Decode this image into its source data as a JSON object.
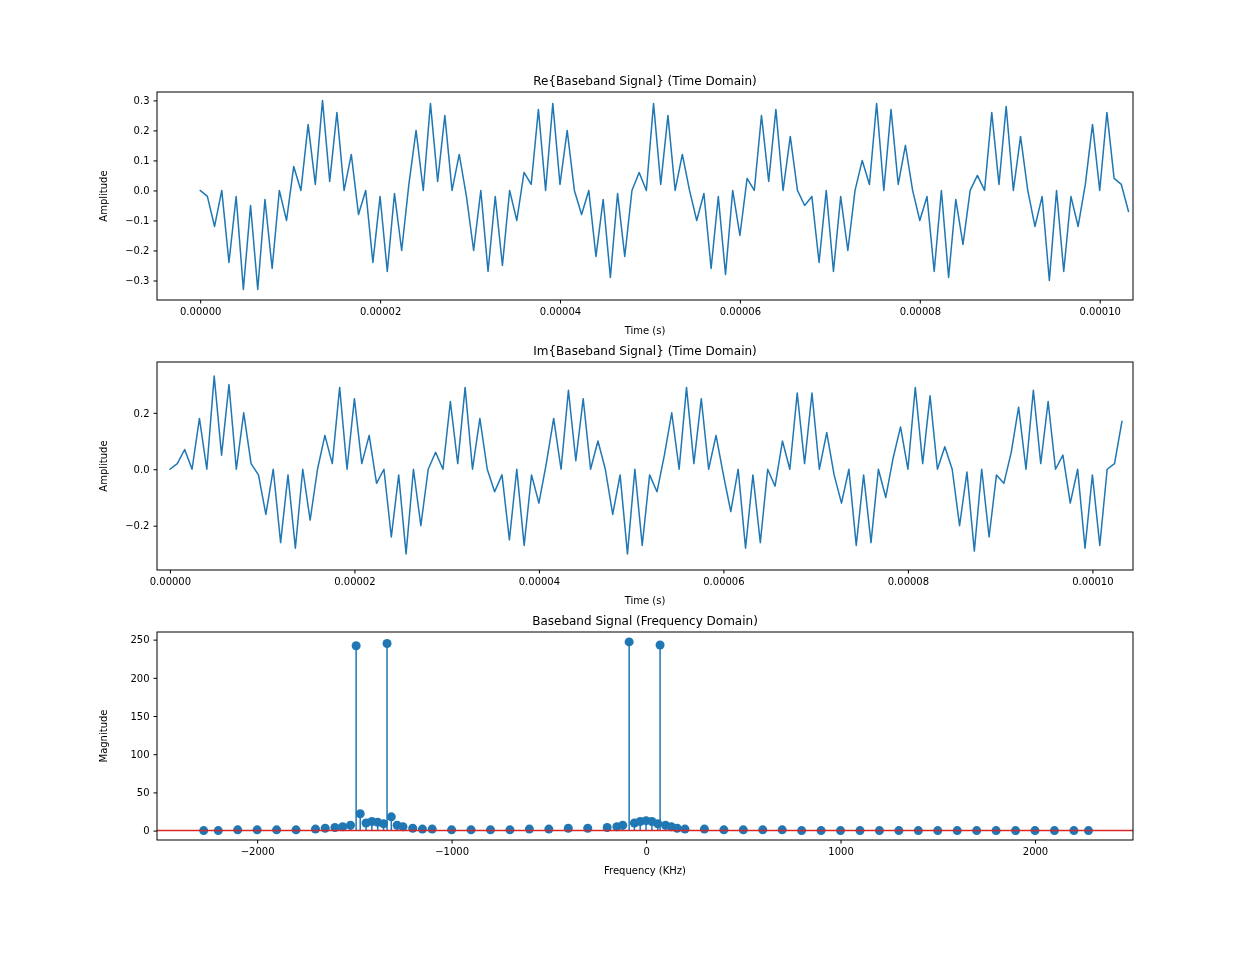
{
  "chart_data": [
    {
      "type": "line",
      "title": "Re{Baseband Signal} (Time Domain)",
      "xlabel": "Time (s)",
      "ylabel": "Amplitude",
      "x": [
        0.0,
        8e-07,
        1.6e-06,
        2.4e-06,
        3.2e-06,
        4e-06,
        4.8e-06,
        5.6e-06,
        6.4e-06,
        7.2e-06,
        8e-06,
        8.8e-06,
        9.6e-06,
        1.04e-05,
        1.12e-05,
        1.2e-05,
        1.28e-05,
        1.36e-05,
        1.44e-05,
        1.52e-05,
        1.6e-05,
        1.68e-05,
        1.76e-05,
        1.84e-05,
        1.92e-05,
        2e-05,
        2.08e-05,
        2.16e-05,
        2.24e-05,
        2.32e-05,
        2.4e-05,
        2.48e-05,
        2.56e-05,
        2.64e-05,
        2.72e-05,
        2.8e-05,
        2.88e-05,
        2.96e-05,
        3.04e-05,
        3.12e-05,
        3.2e-05,
        3.28e-05,
        3.36e-05,
        3.44e-05,
        3.52e-05,
        3.6e-05,
        3.68e-05,
        3.76e-05,
        3.84e-05,
        3.92e-05,
        4e-05,
        4.08e-05,
        4.16e-05,
        4.24e-05,
        4.32e-05,
        4.4e-05,
        4.48e-05,
        4.56e-05,
        4.64e-05,
        4.72e-05,
        4.8e-05,
        4.88e-05,
        4.96e-05,
        5.04e-05,
        5.12e-05,
        5.2e-05,
        5.28e-05,
        5.36e-05,
        5.44e-05,
        5.52e-05,
        5.6e-05,
        5.68e-05,
        5.76e-05,
        5.84e-05,
        5.92e-05,
        6e-05,
        6.08e-05,
        6.16e-05,
        6.24e-05,
        6.32e-05,
        6.4e-05,
        6.48e-05,
        6.56e-05,
        6.64e-05,
        6.72e-05,
        6.8e-05,
        6.88e-05,
        6.96e-05,
        7.04e-05,
        7.12e-05,
        7.2e-05,
        7.28e-05,
        7.36e-05,
        7.44e-05,
        7.52e-05,
        7.6e-05,
        7.68e-05,
        7.76e-05,
        7.84e-05,
        7.92e-05,
        8e-05,
        8.08e-05,
        8.16e-05,
        8.24e-05,
        8.32e-05,
        8.4e-05,
        8.48e-05,
        8.56e-05,
        8.64e-05,
        8.72e-05,
        8.8e-05,
        8.88e-05,
        8.96e-05,
        9.04e-05,
        9.12e-05,
        9.2e-05,
        9.28e-05,
        9.36e-05,
        9.44e-05,
        9.52e-05,
        9.6e-05,
        9.68e-05,
        9.76e-05,
        9.84e-05,
        9.92e-05,
        0.0001,
        0.0001008,
        0.0001016,
        0.0001024,
        0.0001032
      ],
      "series": [
        {
          "color": "#1f77b4",
          "values": [
            0.0,
            -0.02,
            -0.12,
            0.0,
            -0.24,
            -0.02,
            -0.33,
            -0.05,
            -0.33,
            -0.03,
            -0.26,
            0.0,
            -0.1,
            0.08,
            0.0,
            0.22,
            0.02,
            0.3,
            0.03,
            0.26,
            0.0,
            0.12,
            -0.08,
            0.0,
            -0.24,
            -0.02,
            -0.27,
            -0.01,
            -0.2,
            0.02,
            0.2,
            0.0,
            0.29,
            0.03,
            0.25,
            0.0,
            0.12,
            -0.02,
            -0.2,
            0.0,
            -0.27,
            -0.02,
            -0.25,
            0.0,
            -0.1,
            0.06,
            0.02,
            0.27,
            0.0,
            0.29,
            0.02,
            0.2,
            0.0,
            -0.08,
            0.0,
            -0.22,
            -0.03,
            -0.29,
            -0.01,
            -0.22,
            0.0,
            0.06,
            0.0,
            0.29,
            0.02,
            0.25,
            0.0,
            0.12,
            0.0,
            -0.1,
            -0.01,
            -0.26,
            -0.02,
            -0.28,
            0.0,
            -0.15,
            0.04,
            0.0,
            0.25,
            0.03,
            0.27,
            0.0,
            0.18,
            0.0,
            -0.05,
            -0.02,
            -0.24,
            0.0,
            -0.27,
            -0.02,
            -0.2,
            0.0,
            0.1,
            0.02,
            0.29,
            0.0,
            0.27,
            0.02,
            0.15,
            0.0,
            -0.1,
            -0.02,
            -0.27,
            0.0,
            -0.29,
            -0.03,
            -0.18,
            0.0,
            0.05,
            0.0,
            0.26,
            0.02,
            0.28,
            0.0,
            0.18,
            0.0,
            -0.12,
            -0.02,
            -0.3,
            0.0,
            -0.27,
            -0.02,
            -0.12,
            0.02,
            0.22,
            0.0,
            0.26,
            0.04,
            0.02,
            -0.07
          ]
        }
      ],
      "xlim": [
        -4.8e-06,
        0.0001037
      ],
      "ylim": [
        -0.365,
        0.328
      ],
      "xticks": [
        {
          "value": 0,
          "label": "0.00000"
        },
        {
          "value": 2e-05,
          "label": "0.00002"
        },
        {
          "value": 4e-05,
          "label": "0.00004"
        },
        {
          "value": 6e-05,
          "label": "0.00006"
        },
        {
          "value": 8e-05,
          "label": "0.00008"
        },
        {
          "value": 0.0001,
          "label": "0.00010"
        }
      ],
      "yticks": [
        {
          "value": -0.3,
          "label": "−0.3"
        },
        {
          "value": -0.2,
          "label": "−0.2"
        },
        {
          "value": -0.1,
          "label": "−0.1"
        },
        {
          "value": 0,
          "label": "0.0"
        },
        {
          "value": 0.1,
          "label": "0.1"
        },
        {
          "value": 0.2,
          "label": "0.2"
        },
        {
          "value": 0.3,
          "label": "0.3"
        }
      ]
    },
    {
      "type": "line",
      "title": "Im{Baseband Signal} (Time Domain)",
      "xlabel": "Time (s)",
      "ylabel": "Amplitude",
      "x": [
        0.0,
        8e-07,
        1.6e-06,
        2.4e-06,
        3.2e-06,
        4e-06,
        4.8e-06,
        5.6e-06,
        6.4e-06,
        7.2e-06,
        8e-06,
        8.8e-06,
        9.6e-06,
        1.04e-05,
        1.12e-05,
        1.2e-05,
        1.28e-05,
        1.36e-05,
        1.44e-05,
        1.52e-05,
        1.6e-05,
        1.68e-05,
        1.76e-05,
        1.84e-05,
        1.92e-05,
        2e-05,
        2.08e-05,
        2.16e-05,
        2.24e-05,
        2.32e-05,
        2.4e-05,
        2.48e-05,
        2.56e-05,
        2.64e-05,
        2.72e-05,
        2.8e-05,
        2.88e-05,
        2.96e-05,
        3.04e-05,
        3.12e-05,
        3.2e-05,
        3.28e-05,
        3.36e-05,
        3.44e-05,
        3.52e-05,
        3.6e-05,
        3.68e-05,
        3.76e-05,
        3.84e-05,
        3.92e-05,
        4e-05,
        4.08e-05,
        4.16e-05,
        4.24e-05,
        4.32e-05,
        4.4e-05,
        4.48e-05,
        4.56e-05,
        4.64e-05,
        4.72e-05,
        4.8e-05,
        4.88e-05,
        4.96e-05,
        5.04e-05,
        5.12e-05,
        5.2e-05,
        5.28e-05,
        5.36e-05,
        5.44e-05,
        5.52e-05,
        5.6e-05,
        5.68e-05,
        5.76e-05,
        5.84e-05,
        5.92e-05,
        6e-05,
        6.08e-05,
        6.16e-05,
        6.24e-05,
        6.32e-05,
        6.4e-05,
        6.48e-05,
        6.56e-05,
        6.64e-05,
        6.72e-05,
        6.8e-05,
        6.88e-05,
        6.96e-05,
        7.04e-05,
        7.12e-05,
        7.2e-05,
        7.28e-05,
        7.36e-05,
        7.44e-05,
        7.52e-05,
        7.6e-05,
        7.68e-05,
        7.76e-05,
        7.84e-05,
        7.92e-05,
        8e-05,
        8.08e-05,
        8.16e-05,
        8.24e-05,
        8.32e-05,
        8.4e-05,
        8.48e-05,
        8.56e-05,
        8.64e-05,
        8.72e-05,
        8.8e-05,
        8.88e-05,
        8.96e-05,
        9.04e-05,
        9.12e-05,
        9.2e-05,
        9.28e-05,
        9.36e-05,
        9.44e-05,
        9.52e-05,
        9.6e-05,
        9.68e-05,
        9.76e-05,
        9.84e-05,
        9.92e-05,
        0.0001,
        0.0001008,
        0.0001016,
        0.0001024,
        0.0001032
      ],
      "series": [
        {
          "color": "#1f77b4",
          "values": [
            0.0,
            0.02,
            0.07,
            0.0,
            0.18,
            0.0,
            0.33,
            0.05,
            0.3,
            0.0,
            0.2,
            0.02,
            -0.02,
            -0.16,
            0.0,
            -0.26,
            -0.02,
            -0.28,
            0.0,
            -0.18,
            0.0,
            0.12,
            0.02,
            0.29,
            0.0,
            0.25,
            0.02,
            0.12,
            -0.05,
            0.0,
            -0.24,
            -0.02,
            -0.3,
            0.0,
            -0.2,
            0.0,
            0.06,
            0.0,
            0.24,
            0.02,
            0.29,
            0.0,
            0.18,
            0.0,
            -0.08,
            -0.02,
            -0.25,
            0.0,
            -0.27,
            -0.02,
            -0.12,
            0.02,
            0.18,
            0.0,
            0.28,
            0.03,
            0.25,
            0.0,
            0.1,
            0.0,
            -0.16,
            -0.02,
            -0.3,
            0.0,
            -0.27,
            -0.02,
            -0.08,
            0.05,
            0.2,
            0.0,
            0.29,
            0.02,
            0.25,
            0.0,
            0.12,
            -0.02,
            -0.15,
            0.0,
            -0.28,
            -0.02,
            -0.26,
            0.0,
            -0.06,
            0.1,
            0.0,
            0.27,
            0.02,
            0.27,
            0.0,
            0.13,
            -0.02,
            -0.12,
            0.0,
            -0.27,
            -0.02,
            -0.26,
            0.0,
            -0.1,
            0.04,
            0.15,
            0.0,
            0.29,
            0.02,
            0.26,
            0.0,
            0.08,
            0.0,
            -0.2,
            -0.01,
            -0.29,
            0.0,
            -0.24,
            -0.02,
            -0.05,
            0.06,
            0.22,
            0.0,
            0.28,
            0.02,
            0.24,
            0.0,
            0.05,
            -0.12,
            0.0,
            -0.28,
            -0.02,
            -0.27,
            0.0,
            0.02,
            0.17
          ]
        }
      ],
      "xlim": [
        -1.4e-06,
        0.0001044
      ],
      "ylim": [
        -0.357,
        0.38
      ],
      "xticks": [
        {
          "value": 0,
          "label": "0.00000"
        },
        {
          "value": 2e-05,
          "label": "0.00002"
        },
        {
          "value": 4e-05,
          "label": "0.00004"
        },
        {
          "value": 6e-05,
          "label": "0.00006"
        },
        {
          "value": 8e-05,
          "label": "0.00008"
        },
        {
          "value": 0.0001,
          "label": "0.00010"
        }
      ],
      "yticks": [
        {
          "value": -0.2,
          "label": "−0.2"
        },
        {
          "value": 0,
          "label": "0.0"
        },
        {
          "value": 0.2,
          "label": "0.2"
        }
      ]
    },
    {
      "type": "lollipop",
      "title": "Baseband Signal (Frequency Domain)",
      "xlabel": "Frequency (KHz)",
      "ylabel": "Magnitude",
      "marker": "circle",
      "x": [
        -2275,
        -2200,
        -2100,
        -2000,
        -1900,
        -1800,
        -1700,
        -1650,
        -1600,
        -1560,
        -1520,
        -1491,
        -1470,
        -1440,
        -1410,
        -1380,
        -1350,
        -1332,
        -1310,
        -1280,
        -1250,
        -1200,
        -1150,
        -1100,
        -1000,
        -900,
        -800,
        -700,
        -600,
        -500,
        -400,
        -300,
        -200,
        -150,
        -120,
        -87,
        -60,
        -30,
        0,
        30,
        60,
        72,
        100,
        130,
        160,
        200,
        300,
        400,
        500,
        600,
        700,
        800,
        900,
        1000,
        1100,
        1200,
        1300,
        1400,
        1500,
        1600,
        1700,
        1800,
        1900,
        2000,
        2100,
        2200,
        2275
      ],
      "series": [
        {
          "color": "#1f77b4",
          "values": [
            0,
            0,
            1,
            1,
            1,
            1,
            2,
            3,
            4,
            5,
            7,
            242,
            22,
            10,
            12,
            11,
            9,
            245,
            18,
            7,
            5,
            3,
            2,
            2,
            1,
            1,
            1,
            1,
            2,
            2,
            3,
            3,
            4,
            5,
            7,
            247,
            10,
            12,
            13,
            12,
            9,
            243,
            7,
            5,
            3,
            2,
            2,
            1,
            1,
            1,
            1,
            0,
            0,
            0,
            0,
            0,
            0,
            0,
            0,
            0,
            0,
            0,
            0,
            0,
            0,
            0,
            0
          ]
        }
      ],
      "ref_lines": [
        {
          "axis": "y",
          "value": 0,
          "color": "#d62728"
        }
      ],
      "xlim": [
        -2515,
        2504
      ],
      "ylim": [
        -12.3,
        260
      ],
      "xticks": [
        {
          "value": -2000,
          "label": "−2000"
        },
        {
          "value": -1000,
          "label": "−1000"
        },
        0,
        1000,
        2000
      ],
      "yticks": [
        0,
        50,
        100,
        150,
        200,
        250
      ]
    }
  ]
}
